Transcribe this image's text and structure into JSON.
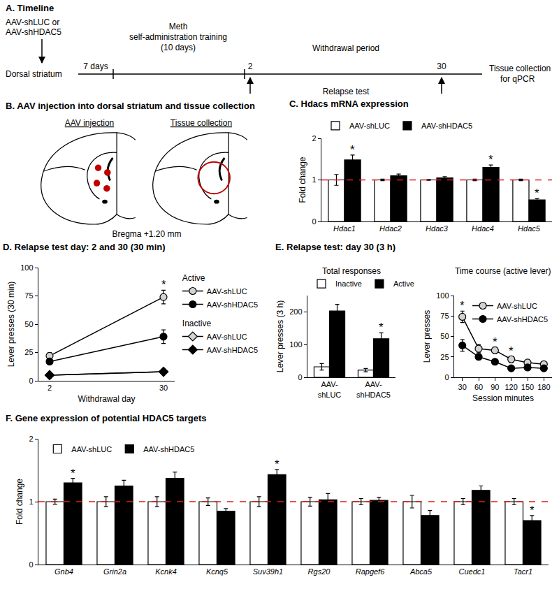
{
  "timeline": {
    "title": "A. Timeline",
    "injection": [
      "AAV-shLUC or",
      "AAV-shHDAC5"
    ],
    "site": "Dorsal striatum",
    "interval": "7 days",
    "training": [
      "Meth",
      "self-administration training",
      "(10 days)"
    ],
    "withdrawal": "Withdrawal period",
    "test_days": [
      2,
      30
    ],
    "test": "Relapse test",
    "collection": [
      "Tissue collection",
      "for qPCR"
    ]
  },
  "anatomy": {
    "title": "B. AAV injection into dorsal striatum and tissue collection",
    "left_label": "AAV injection",
    "right_label": "Tissue collection",
    "coordinate": "Bregma +1.20 mm"
  },
  "chart_data": [
    {
      "type": "bar",
      "title": "C. Hdacs mRNA expression",
      "y_label": "Fold change",
      "categories": [
        "Hdac1",
        "Hdac2",
        "Hdac3",
        "Hdac4",
        "Hdac5"
      ],
      "series": [
        {
          "name": "AAV-shLUC",
          "color": "#ffffff",
          "values": [
            1.0,
            1.0,
            1.0,
            1.0,
            1.0
          ],
          "errors": [
            0.13,
            0.02,
            0.01,
            0.02,
            0.02
          ]
        },
        {
          "name": "AAV-shHDAC5",
          "color": "#000000",
          "values": [
            1.48,
            1.1,
            1.05,
            1.3,
            0.52
          ],
          "errors": [
            0.12,
            0.04,
            0.03,
            0.06,
            0.03
          ]
        }
      ],
      "ylim": [
        0,
        2
      ],
      "yticks": [
        0,
        1,
        2
      ],
      "grid": false,
      "reference_line": {
        "value": 1,
        "color": "#e41a1c",
        "line_style": "dash"
      },
      "annotations": [
        {
          "text": "*",
          "category": "Hdac1",
          "series": "AAV-shHDAC5"
        },
        {
          "text": "*",
          "category": "Hdac4",
          "series": "AAV-shHDAC5"
        },
        {
          "text": "*",
          "category": "Hdac5",
          "series": "AAV-shHDAC5"
        }
      ]
    },
    {
      "type": "line",
      "title": "D. Relapse test day: 2 and 30 (30 min)",
      "x_label": "Withdrawal day",
      "y_label": "Lever presses (30 min)",
      "categories": [
        "2",
        "30"
      ],
      "series": [
        {
          "name": "AAV-shLUC",
          "group": "Active",
          "color": "#d3d3d3",
          "marker": "circle",
          "values": [
            22,
            74
          ],
          "errors": [
            3,
            6
          ]
        },
        {
          "name": "AAV-shHDAC5",
          "group": "Active",
          "color": "#000000",
          "marker": "circle",
          "values": [
            17,
            39
          ],
          "errors": [
            2,
            6
          ]
        },
        {
          "name": "AAV-shLUC",
          "group": "Inactive",
          "color": "#d3d3d3",
          "marker": "diamond",
          "values": [
            5,
            8
          ],
          "errors": [
            1,
            1.5
          ]
        },
        {
          "name": "AAV-shHDAC5",
          "group": "Inactive",
          "color": "#000000",
          "marker": "diamond",
          "values": [
            5,
            8
          ],
          "errors": [
            1,
            1.5
          ]
        }
      ],
      "ylim": [
        0,
        100
      ],
      "yticks": [
        0,
        25,
        50,
        75,
        100
      ],
      "grid": false,
      "annotations": [
        {
          "text": "*",
          "category": "30",
          "series": "AAV-shLUC",
          "group": "Active"
        }
      ]
    },
    {
      "type": "bar",
      "title": "E. Relapse test: day 30 (3 h)",
      "subtitle": "Total responses",
      "y_label": "Lever presses (3 h)",
      "categories": [
        "AAV-shLUC",
        "AAV-shHDAC5"
      ],
      "series": [
        {
          "name": "Inactive",
          "color": "#ffffff",
          "values": [
            32,
            22
          ],
          "errors": [
            10,
            5
          ]
        },
        {
          "name": "Active",
          "color": "#000000",
          "values": [
            203,
            118
          ],
          "errors": [
            20,
            18
          ]
        }
      ],
      "ylim": [
        0,
        250
      ],
      "yticks": [
        0,
        100,
        200
      ],
      "grid": false,
      "annotations": [
        {
          "text": "*",
          "category": "AAV-shHDAC5",
          "series": "Active"
        }
      ]
    },
    {
      "type": "line",
      "subtitle": "Time course (active lever)",
      "x_label": "Session minutes",
      "y_label": "Lever presses",
      "x": [
        30,
        60,
        90,
        120,
        150,
        180
      ],
      "series": [
        {
          "name": "AAV-shLUC",
          "color": "#d3d3d3",
          "marker": "circle",
          "values": [
            74,
            35,
            33,
            22,
            18,
            16
          ],
          "errors": [
            7,
            5,
            4,
            4,
            3,
            3
          ]
        },
        {
          "name": "AAV-shHDAC5",
          "color": "#000000",
          "marker": "circle",
          "values": [
            39,
            25,
            19,
            11,
            12,
            11
          ],
          "errors": [
            7,
            3,
            3,
            2,
            2,
            2
          ]
        }
      ],
      "xlim": [
        15,
        195
      ],
      "xticks": [
        30,
        60,
        90,
        120,
        150,
        180
      ],
      "ylim": [
        0,
        100
      ],
      "yticks": [
        0,
        25,
        50,
        75,
        100
      ],
      "grid": false,
      "annotations": [
        {
          "text": "*",
          "x": 30,
          "series": "AAV-shLUC"
        },
        {
          "text": "*",
          "x": 90,
          "series": "AAV-shLUC"
        },
        {
          "text": "*",
          "x": 120,
          "series": "AAV-shLUC"
        }
      ]
    },
    {
      "type": "bar",
      "title": "F. Gene expression of potential HDAC5 targets",
      "y_label": "Fold change",
      "categories": [
        "Gnb4",
        "Grin2a",
        "Kcnk4",
        "Kcnq5",
        "Suv39h1",
        "Rgs20",
        "Rapgef6",
        "Abca5",
        "Cuedc1",
        "Tacr1"
      ],
      "series": [
        {
          "name": "AAV-shLUC",
          "color": "#ffffff",
          "values": [
            1.0,
            1.0,
            1.0,
            1.0,
            1.0,
            1.0,
            1.0,
            1.0,
            1.0,
            1.0
          ],
          "errors": [
            0.04,
            0.08,
            0.08,
            0.06,
            0.08,
            0.07,
            0.05,
            0.1,
            0.05,
            0.05
          ]
        },
        {
          "name": "AAV-shHDAC5",
          "color": "#000000",
          "values": [
            1.3,
            1.25,
            1.37,
            0.85,
            1.43,
            1.03,
            1.02,
            0.78,
            1.18,
            0.7
          ],
          "errors": [
            0.07,
            0.09,
            0.1,
            0.04,
            0.08,
            0.1,
            0.05,
            0.08,
            0.07,
            0.08
          ]
        }
      ],
      "ylim": [
        0,
        2
      ],
      "yticks": [
        0,
        1,
        2
      ],
      "grid": false,
      "reference_line": {
        "value": 1,
        "color": "#e41a1c",
        "line_style": "dash"
      },
      "annotations": [
        {
          "text": "*",
          "category": "Gnb4",
          "series": "AAV-shHDAC5"
        },
        {
          "text": "*",
          "category": "Suv39h1",
          "series": "AAV-shHDAC5"
        },
        {
          "text": "*",
          "category": "Tacr1",
          "series": "AAV-shHDAC5"
        }
      ]
    }
  ]
}
